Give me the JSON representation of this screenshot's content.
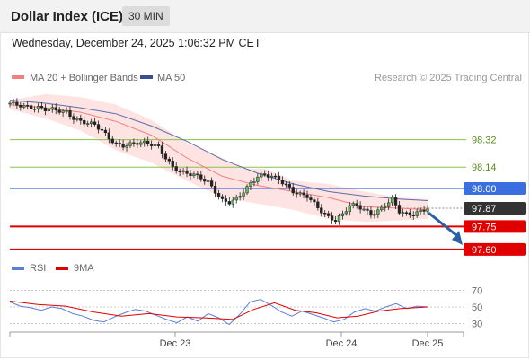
{
  "header": {
    "title": "Dollar Index (ICE)",
    "timeframe": "30 MIN"
  },
  "datetime": "Wednesday, December 24, 2025 1:06:32 PM CET",
  "legend_top": {
    "bb_label": "MA 20 + Bollinger Bands",
    "ma50_label": "MA 50",
    "credit": "Research © 2025 Trading Central"
  },
  "legend_bottom": {
    "rsi_label": "RSI",
    "ma9_label": "9MA"
  },
  "colors": {
    "bb_line": "#f08080",
    "bb_fill": "#fde0de",
    "ma50": "#5a6fa8",
    "green_level": "#8bc34a",
    "blue_level": "#3b6fe0",
    "red_level": "#e00000",
    "current": "#333333",
    "arrow": "#2a5fa6",
    "rsi": "#5a7fd8",
    "rsi_ma": "#e00000"
  },
  "chart_data": [
    {
      "type": "candlestick",
      "title": "Dollar Index (ICE)",
      "timeframe": "30 MIN",
      "x_tick_labels": [
        "Dec 23",
        "Dec 24",
        "Dec 25"
      ],
      "ylim": [
        97.54,
        98.66
      ],
      "levels": [
        {
          "label": "98.32",
          "value": 98.32,
          "kind": "resistance-2"
        },
        {
          "label": "98.14",
          "value": 98.14,
          "kind": "resistance-1"
        },
        {
          "label": "98.00",
          "value": 98.0,
          "kind": "pivot"
        },
        {
          "label": "97.87",
          "value": 97.87,
          "kind": "last-price"
        },
        {
          "label": "97.75",
          "value": 97.75,
          "kind": "support-1"
        },
        {
          "label": "97.60",
          "value": 97.6,
          "kind": "support-2"
        }
      ],
      "forecast": {
        "direction": "down",
        "from": 97.87,
        "to": 97.64
      },
      "close_path": [
        [
          0,
          98.56
        ],
        [
          2,
          98.55
        ],
        [
          4,
          98.54
        ],
        [
          6,
          98.53
        ],
        [
          8,
          98.53
        ],
        [
          10,
          98.52
        ],
        [
          12,
          98.52
        ],
        [
          14,
          98.51
        ],
        [
          16,
          98.5
        ],
        [
          18,
          98.46
        ],
        [
          20,
          98.44
        ],
        [
          22,
          98.43
        ],
        [
          24,
          98.42
        ],
        [
          26,
          98.38
        ],
        [
          28,
          98.33
        ],
        [
          30,
          98.29
        ],
        [
          32,
          98.28
        ],
        [
          34,
          98.29
        ],
        [
          36,
          98.3
        ],
        [
          38,
          98.3
        ],
        [
          40,
          98.29
        ],
        [
          42,
          98.27
        ],
        [
          44,
          98.2
        ],
        [
          46,
          98.14
        ],
        [
          48,
          98.11
        ],
        [
          50,
          98.1
        ],
        [
          52,
          98.09
        ],
        [
          54,
          98.07
        ],
        [
          56,
          98.04
        ],
        [
          58,
          97.98
        ],
        [
          60,
          97.92
        ],
        [
          62,
          97.91
        ],
        [
          64,
          97.93
        ],
        [
          66,
          97.98
        ],
        [
          68,
          98.03
        ],
        [
          70,
          98.08
        ],
        [
          72,
          98.09
        ],
        [
          74,
          98.08
        ],
        [
          76,
          98.06
        ],
        [
          78,
          98.02
        ],
        [
          80,
          97.98
        ],
        [
          82,
          97.96
        ],
        [
          84,
          97.95
        ],
        [
          86,
          97.9
        ],
        [
          88,
          97.85
        ],
        [
          90,
          97.81
        ],
        [
          92,
          97.79
        ],
        [
          94,
          97.83
        ],
        [
          96,
          97.89
        ],
        [
          98,
          97.89
        ],
        [
          100,
          97.86
        ],
        [
          102,
          97.83
        ],
        [
          104,
          97.85
        ],
        [
          106,
          97.89
        ],
        [
          108,
          97.93
        ],
        [
          110,
          97.85
        ],
        [
          112,
          97.83
        ],
        [
          114,
          97.83
        ],
        [
          116,
          97.85
        ],
        [
          118,
          97.87
        ]
      ],
      "ma20_path": [
        [
          0,
          98.55
        ],
        [
          10,
          98.53
        ],
        [
          20,
          98.5
        ],
        [
          30,
          98.44
        ],
        [
          40,
          98.35
        ],
        [
          50,
          98.2
        ],
        [
          60,
          98.08
        ],
        [
          70,
          98.02
        ],
        [
          80,
          97.98
        ],
        [
          90,
          97.94
        ],
        [
          100,
          97.88
        ],
        [
          110,
          97.87
        ],
        [
          118,
          97.86
        ]
      ],
      "bb_upper_path": [
        [
          0,
          98.58
        ],
        [
          10,
          98.62
        ],
        [
          20,
          98.6
        ],
        [
          30,
          98.55
        ],
        [
          40,
          98.45
        ],
        [
          50,
          98.3
        ],
        [
          60,
          98.2
        ],
        [
          66,
          98.13
        ],
        [
          72,
          98.13
        ],
        [
          80,
          98.05
        ],
        [
          90,
          98.03
        ],
        [
          100,
          97.98
        ],
        [
          110,
          97.94
        ],
        [
          118,
          97.93
        ]
      ],
      "bb_lower_path": [
        [
          0,
          98.52
        ],
        [
          10,
          98.46
        ],
        [
          20,
          98.38
        ],
        [
          30,
          98.25
        ],
        [
          40,
          98.17
        ],
        [
          50,
          98.05
        ],
        [
          60,
          97.94
        ],
        [
          70,
          97.9
        ],
        [
          80,
          97.86
        ],
        [
          90,
          97.8
        ],
        [
          100,
          97.78
        ],
        [
          110,
          97.79
        ],
        [
          118,
          97.8
        ]
      ],
      "ma50_path": [
        [
          0,
          98.58
        ],
        [
          10,
          98.56
        ],
        [
          20,
          98.53
        ],
        [
          30,
          98.49
        ],
        [
          40,
          98.41
        ],
        [
          50,
          98.31
        ],
        [
          60,
          98.19
        ],
        [
          70,
          98.1
        ],
        [
          80,
          98.03
        ],
        [
          90,
          97.98
        ],
        [
          100,
          97.95
        ],
        [
          110,
          97.93
        ],
        [
          118,
          97.92
        ]
      ]
    },
    {
      "type": "line",
      "title": "RSI",
      "y_tick_labels": [
        "70",
        "50",
        "30"
      ],
      "ylim": [
        22,
        78
      ],
      "series": [
        {
          "name": "RSI",
          "points": [
            [
              0,
              56
            ],
            [
              3,
              51
            ],
            [
              6,
              49
            ],
            [
              9,
              46
            ],
            [
              12,
              50
            ],
            [
              15,
              48
            ],
            [
              18,
              42
            ],
            [
              21,
              39
            ],
            [
              24,
              34
            ],
            [
              27,
              32
            ],
            [
              30,
              38
            ],
            [
              33,
              43
            ],
            [
              36,
              47
            ],
            [
              39,
              45
            ],
            [
              42,
              40
            ],
            [
              45,
              35
            ],
            [
              48,
              31
            ],
            [
              51,
              38
            ],
            [
              54,
              33
            ],
            [
              57,
              42
            ],
            [
              60,
              37
            ],
            [
              63,
              29
            ],
            [
              66,
              41
            ],
            [
              69,
              56
            ],
            [
              72,
              59
            ],
            [
              75,
              52
            ],
            [
              78,
              44
            ],
            [
              81,
              39
            ],
            [
              84,
              45
            ],
            [
              87,
              41
            ],
            [
              90,
              37
            ],
            [
              93,
              32
            ],
            [
              96,
              35
            ],
            [
              99,
              44
            ],
            [
              102,
              48
            ],
            [
              105,
              45
            ],
            [
              108,
              50
            ],
            [
              111,
              54
            ],
            [
              114,
              48
            ],
            [
              117,
              51
            ],
            [
              120,
              50
            ]
          ]
        },
        {
          "name": "9MA",
          "points": [
            [
              0,
              57
            ],
            [
              8,
              53
            ],
            [
              16,
              51
            ],
            [
              24,
              44
            ],
            [
              32,
              39
            ],
            [
              40,
              42
            ],
            [
              48,
              38
            ],
            [
              56,
              37
            ],
            [
              64,
              35
            ],
            [
              70,
              47
            ],
            [
              76,
              55
            ],
            [
              82,
              46
            ],
            [
              88,
              43
            ],
            [
              94,
              37
            ],
            [
              100,
              39
            ],
            [
              106,
              45
            ],
            [
              112,
              48
            ],
            [
              120,
              50
            ]
          ]
        }
      ]
    }
  ]
}
